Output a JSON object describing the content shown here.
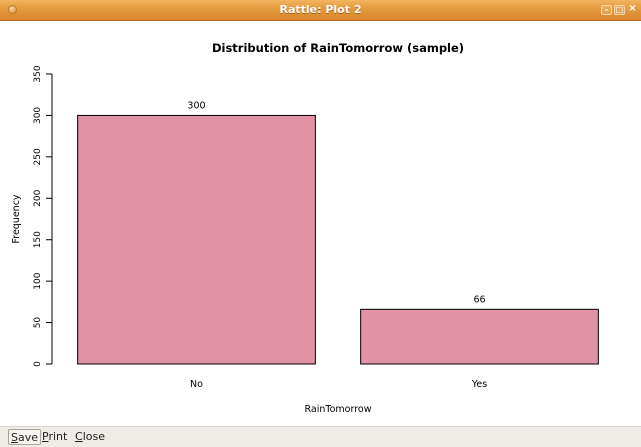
{
  "window": {
    "title": "Rattle: Plot 2",
    "controls": {
      "minimize": "–",
      "maximize": "□",
      "close": "×"
    }
  },
  "toolbar": {
    "save": {
      "mnemonic": "S",
      "rest": "ave"
    },
    "print": {
      "mnemonic": "P",
      "rest": "rint"
    },
    "close": {
      "mnemonic": "C",
      "rest": "lose"
    }
  },
  "chart_data": {
    "type": "bar",
    "title": "Distribution of RainTomorrow (sample)",
    "xlabel": "RainTomorrow",
    "ylabel": "Frequency",
    "categories": [
      "No",
      "Yes"
    ],
    "values": [
      300,
      66
    ],
    "data_labels": [
      "300",
      "66"
    ],
    "ylim": [
      0,
      350
    ],
    "yticks": [
      0,
      50,
      100,
      150,
      200,
      250,
      300,
      350
    ],
    "bar_color": "#e292a5",
    "grid": false
  }
}
